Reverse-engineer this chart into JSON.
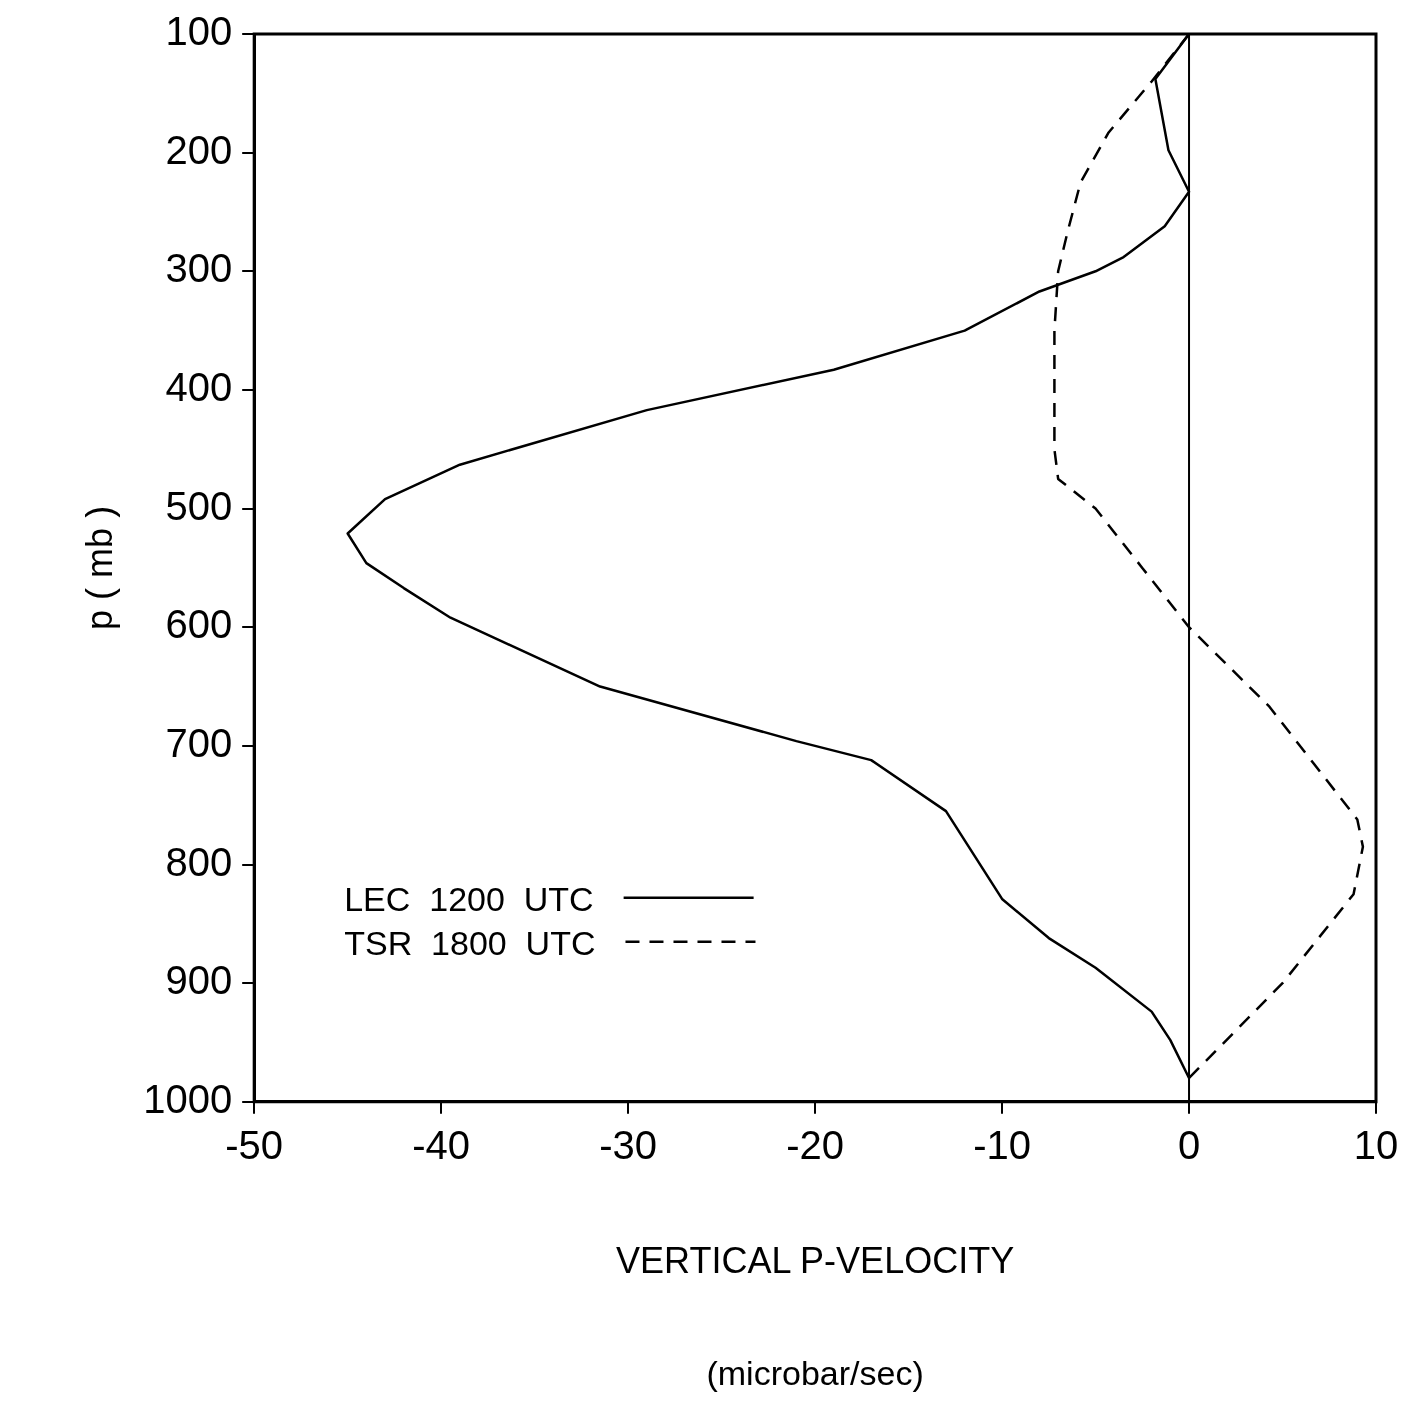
{
  "chart_data": {
    "type": "line",
    "xlabel": "VERTICAL P-VELOCITY",
    "ylabel": "p ( mb )",
    "annotations": [
      "(microbar/sec)"
    ],
    "xlim": [
      -50,
      10
    ],
    "xticks": [
      -50,
      -40,
      -30,
      -20,
      -10,
      0,
      10
    ],
    "ylim": [
      1000,
      100
    ],
    "yticks": [
      100,
      200,
      300,
      400,
      500,
      600,
      700,
      800,
      900,
      1000
    ],
    "grid": false,
    "legend": "bottom left",
    "marker": "none",
    "ref_lines": [
      {
        "axis": "x",
        "value": 0,
        "color": "#000000"
      }
    ],
    "series": [
      {
        "name": "LEC  1200  UTC",
        "color": "#000000",
        "line_style": "solid",
        "x": [
          0,
          -1.8,
          -1.1,
          0,
          -1.3,
          -3.5,
          -5,
          -8,
          -12,
          -19,
          -29,
          -39,
          -43,
          -45,
          -44,
          -42,
          -39.5,
          -31.5,
          -21,
          -17,
          -13,
          -10,
          -7.5,
          -5,
          -2,
          -1,
          0
        ],
        "values": [
          100,
          138,
          198,
          233,
          262,
          288,
          300,
          317,
          350,
          383,
          417,
          463,
          492,
          521,
          546,
          567,
          592,
          650,
          696,
          712,
          755,
          829,
          862,
          887,
          924,
          948,
          980
        ]
      },
      {
        "name": "TSR  1800  UTC",
        "color": "#000000",
        "line_style": "dashed",
        "x": [
          0,
          -2,
          -4.3,
          -5.8,
          -6.5,
          -7,
          -7.2,
          -7.2,
          -7.2,
          -7,
          -5,
          -2.5,
          0,
          4.3,
          9,
          9.3,
          8.8,
          5,
          0
        ],
        "values": [
          100,
          140,
          183,
          225,
          267,
          300,
          350,
          400,
          450,
          475,
          500,
          550,
          600,
          667,
          762,
          785,
          825,
          900,
          980
        ]
      }
    ]
  }
}
